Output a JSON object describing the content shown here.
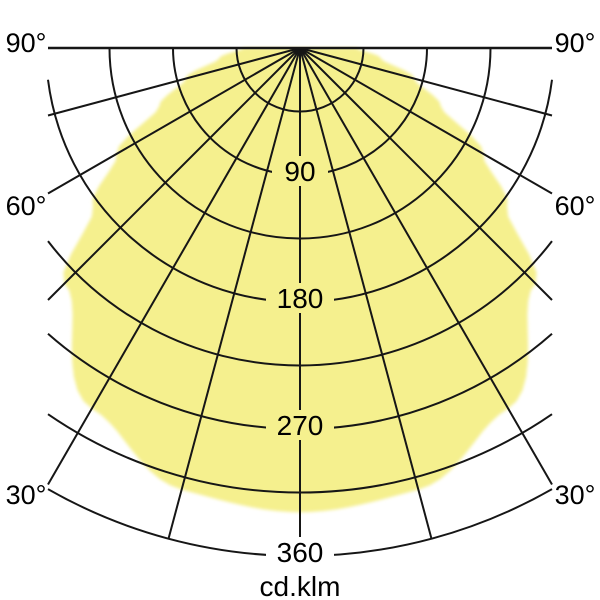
{
  "page": {
    "background": "#ffffff"
  },
  "chart_data": {
    "type": "polar",
    "subtype": "photometric-intensity-distribution",
    "title": "",
    "caption": "cd.klm",
    "unit": "cd.klm",
    "ring_values": [
      45,
      90,
      135,
      180,
      225,
      270,
      315,
      360
    ],
    "radial_ticks": [
      "90",
      "180",
      "270",
      "360"
    ],
    "ray_step_deg": 15,
    "angle_tick_labels": [
      "90°",
      "60°",
      "30°"
    ],
    "angle_tick_degrees": [
      90,
      60,
      30
    ],
    "series": [
      {
        "name": "luminous-intensity-curve",
        "symmetric": true,
        "angles_deg": [
          0,
          15,
          30,
          45,
          52.5,
          60,
          67.5,
          75,
          82.5,
          90
        ],
        "values": [
          329,
          324,
          295,
          236,
          185,
          150,
          108,
          84,
          58,
          40
        ]
      }
    ],
    "axis": {
      "radial_max": 360,
      "radial_step": 45,
      "angular_range_deg": [
        -90,
        90
      ]
    },
    "legend": {
      "shown": false
    },
    "colors": {
      "fill": "#f5f08e",
      "grid": "#161616",
      "text": "#000000",
      "background": "#ffffff"
    }
  }
}
